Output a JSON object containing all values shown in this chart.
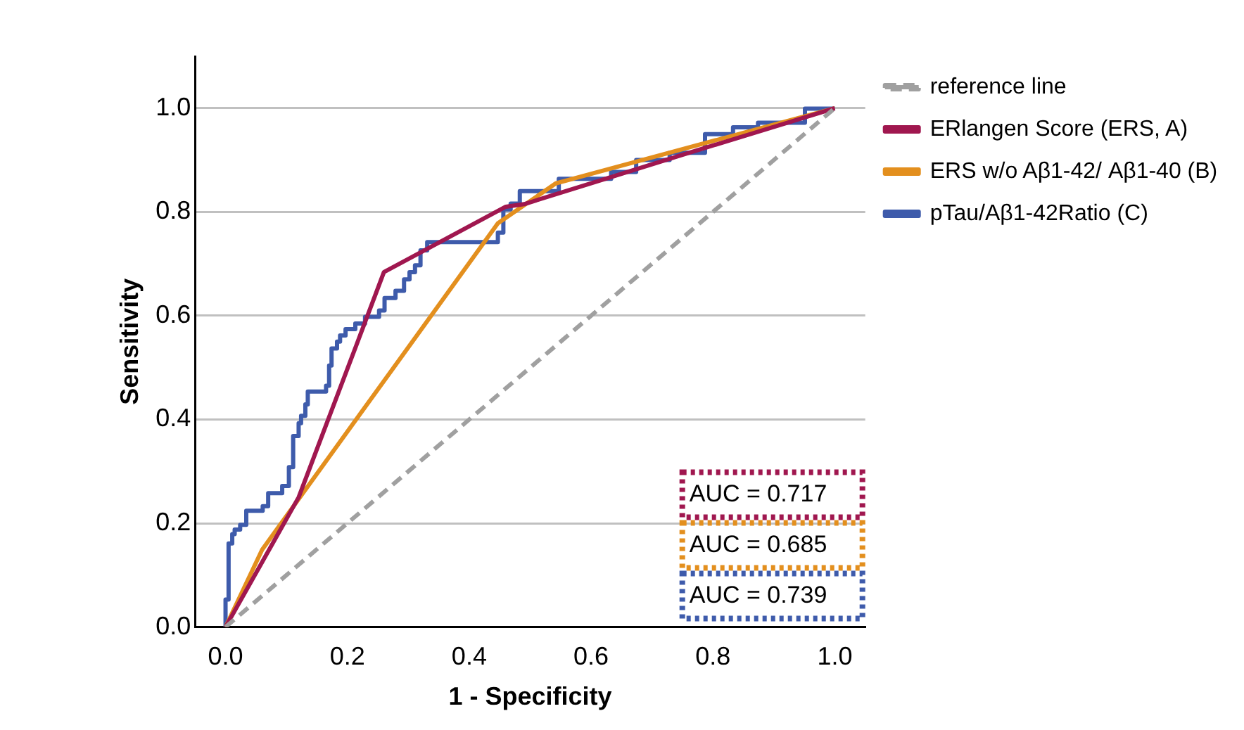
{
  "chart_data": {
    "type": "line",
    "xlabel": "1 - Specificity",
    "ylabel": "Sensitivity",
    "xlim": [
      -0.05,
      1.05
    ],
    "ylim": [
      0,
      1.1
    ],
    "xticks": [
      {
        "value": 0,
        "label": "0.0"
      },
      {
        "value": 0.2,
        "label": "0.2"
      },
      {
        "value": 0.4,
        "label": "0.4"
      },
      {
        "value": 0.6,
        "label": "0.6"
      },
      {
        "value": 0.8,
        "label": "0.8"
      },
      {
        "value": 1,
        "label": "1.0"
      }
    ],
    "yticks": [
      {
        "value": 0,
        "label": "0.0"
      },
      {
        "value": 0.2,
        "label": "0.2"
      },
      {
        "value": 0.4,
        "label": "0.4"
      },
      {
        "value": 0.6,
        "label": "0.6"
      },
      {
        "value": 0.8,
        "label": "0.8"
      },
      {
        "value": 1,
        "label": "1.0"
      }
    ],
    "grid": "y",
    "legend": "right",
    "marker": "none",
    "series": [
      {
        "name": "reference line",
        "line_style": "dashed",
        "color": "#a0a0a0",
        "x": [
          0,
          1
        ],
        "values": [
          0,
          1
        ]
      },
      {
        "name": "ERlangen Score (ERS, A)",
        "color": "#a0174f",
        "x": [
          0,
          0.12,
          0.215,
          0.26,
          0.46,
          0.49,
          0.75,
          1
        ],
        "values": [
          0,
          0.25,
          0.544,
          0.684,
          0.81,
          0.815,
          0.91,
          1
        ]
      },
      {
        "name": "ERS w/o Aβ1-42/ Aβ1-40 (B)",
        "color": "#e38f1e",
        "x": [
          0,
          0.06,
          0.447,
          0.542,
          1
        ],
        "values": [
          0,
          0.149,
          0.778,
          0.855,
          1
        ]
      },
      {
        "name": "pTau/Aβ1-42Ratio (C)",
        "color": "#3e5bab",
        "x": [
          0,
          0,
          0.005,
          0.005,
          0.011,
          0.011,
          0.015,
          0.015,
          0.024,
          0.024,
          0.034,
          0.034,
          0.061,
          0.061,
          0.07,
          0.07,
          0.093,
          0.093,
          0.104,
          0.104,
          0.111,
          0.111,
          0.12,
          0.12,
          0.124,
          0.124,
          0.131,
          0.131,
          0.135,
          0.135,
          0.165,
          0.165,
          0.17,
          0.17,
          0.174,
          0.174,
          0.183,
          0.183,
          0.188,
          0.188,
          0.197,
          0.197,
          0.213,
          0.213,
          0.229,
          0.229,
          0.252,
          0.252,
          0.261,
          0.261,
          0.279,
          0.279,
          0.293,
          0.293,
          0.302,
          0.302,
          0.311,
          0.311,
          0.32,
          0.32,
          0.331,
          0.331,
          0.447,
          0.447,
          0.456,
          0.456,
          0.468,
          0.468,
          0.483,
          0.483,
          0.547,
          0.547,
          0.633,
          0.633,
          0.674,
          0.674,
          0.729,
          0.729,
          0.787,
          0.787,
          0.833,
          0.833,
          0.874,
          0.874,
          0.951,
          0.951,
          1
        ],
        "values": [
          0,
          0.053,
          0.053,
          0.161,
          0.161,
          0.179,
          0.179,
          0.188,
          0.188,
          0.197,
          0.197,
          0.224,
          0.224,
          0.233,
          0.233,
          0.258,
          0.258,
          0.272,
          0.272,
          0.308,
          0.308,
          0.368,
          0.368,
          0.393,
          0.393,
          0.407,
          0.407,
          0.429,
          0.429,
          0.454,
          0.454,
          0.465,
          0.465,
          0.504,
          0.504,
          0.537,
          0.537,
          0.55,
          0.55,
          0.562,
          0.562,
          0.574,
          0.574,
          0.585,
          0.585,
          0.598,
          0.598,
          0.61,
          0.61,
          0.634,
          0.634,
          0.648,
          0.648,
          0.67,
          0.67,
          0.684,
          0.684,
          0.697,
          0.697,
          0.726,
          0.726,
          0.742,
          0.742,
          0.76,
          0.76,
          0.805,
          0.805,
          0.816,
          0.816,
          0.84,
          0.84,
          0.864,
          0.864,
          0.877,
          0.877,
          0.9,
          0.9,
          0.914,
          0.914,
          0.95,
          0.95,
          0.963,
          0.963,
          0.972,
          0.972,
          0.999,
          0.999
        ]
      }
    ],
    "annotations": [
      "AUC = 0.717",
      "AUC = 0.685",
      "AUC = 0.739"
    ]
  }
}
